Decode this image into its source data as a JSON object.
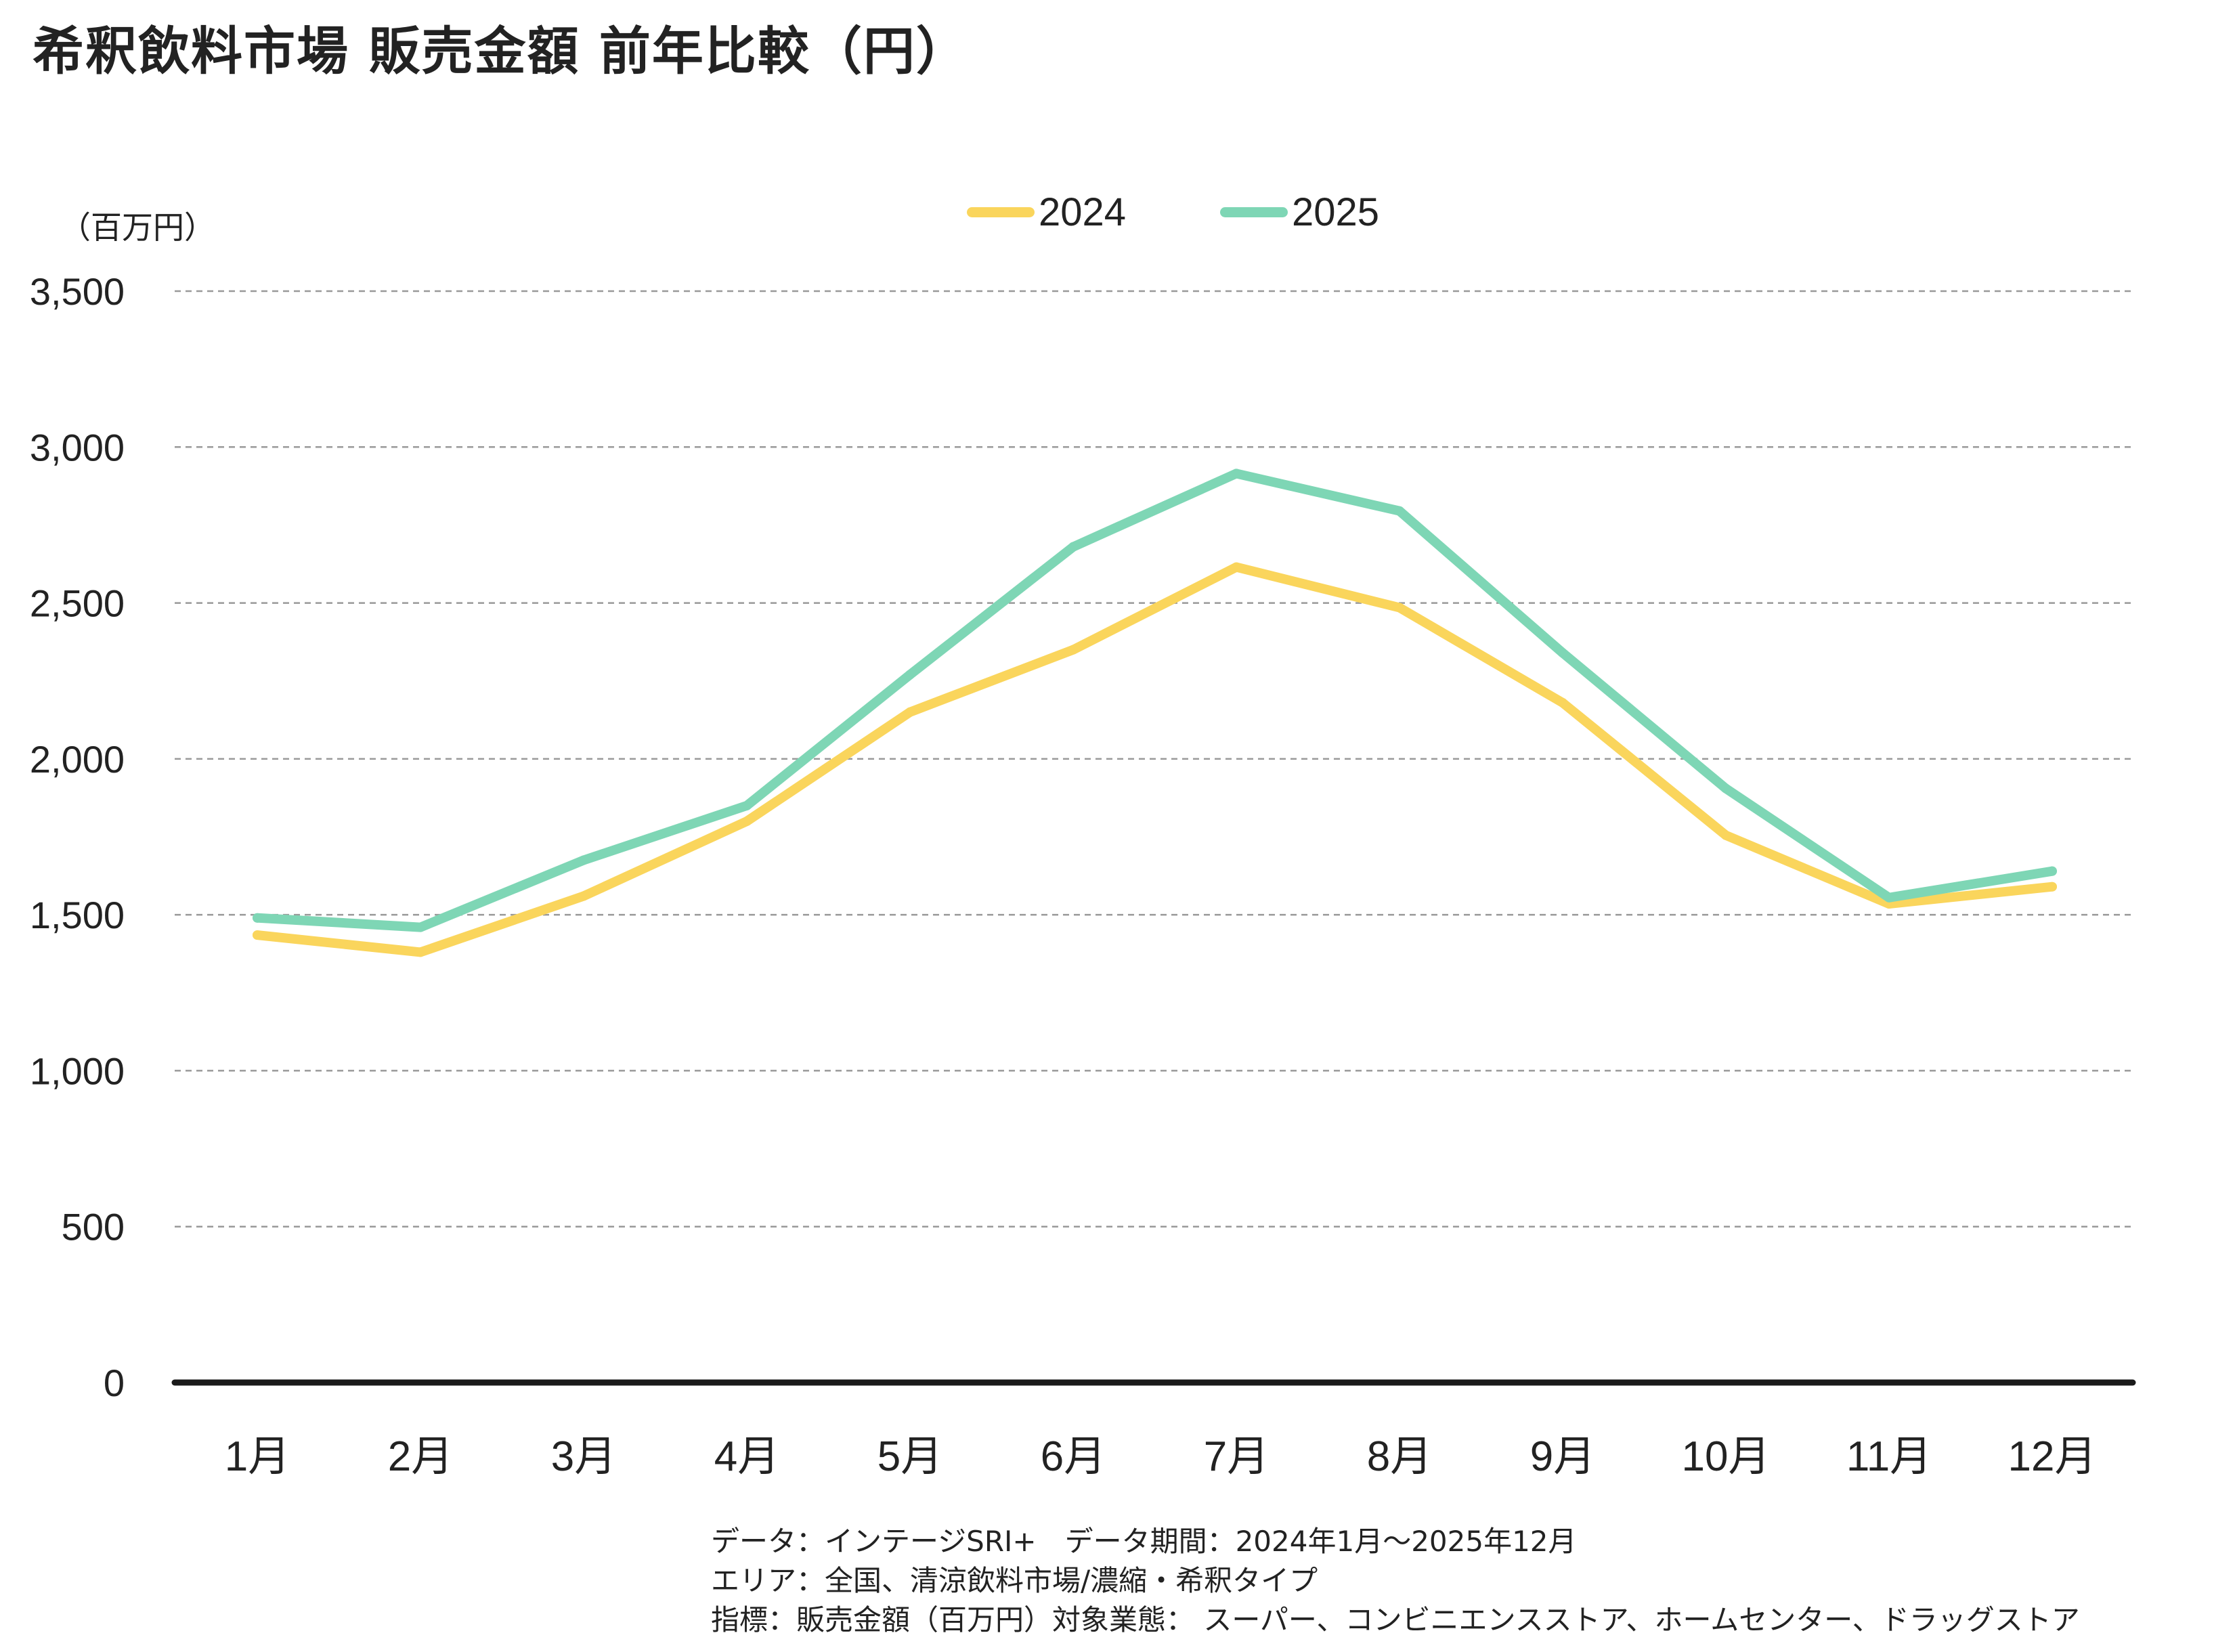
{
  "chart_data": {
    "type": "line",
    "title": "希釈飲料市場 販売金額 前年比較（円）",
    "ylabel": "（百万円）",
    "xlabel": "",
    "categories": [
      "1月",
      "2月",
      "3月",
      "4月",
      "5月",
      "6月",
      "7月",
      "8月",
      "9月",
      "10月",
      "11月",
      "12月"
    ],
    "ylim": [
      0,
      3500
    ],
    "yticks": [
      0,
      500,
      1000,
      1500,
      2000,
      2500,
      3000,
      3500
    ],
    "ytick_labels": [
      "0",
      "500",
      "1,000",
      "1,500",
      "2,000",
      "2,500",
      "3,000",
      "3,500"
    ],
    "grid": true,
    "legend_position": "top-center",
    "series": [
      {
        "name": "2024",
        "color": "#FAD55C",
        "values": [
          1435,
          1380,
          1560,
          1800,
          2150,
          2350,
          2615,
          2485,
          2180,
          1755,
          1535,
          1590
        ]
      },
      {
        "name": "2025",
        "color": "#7ED6B5",
        "values": [
          1490,
          1460,
          1675,
          1850,
          2270,
          2680,
          2915,
          2795,
          2340,
          1905,
          1555,
          1640
        ]
      }
    ]
  },
  "footnote": {
    "lines": [
      "データ：インテージSRI+　データ期間：2024年1月～2025年12月",
      "エリア：全国、清涼飲料市場/濃縮・希釈タイプ",
      "指標：販売金額（百万円）対象業態： スーパー、コンビニエンスストア、ホームセンター、ドラッグストア"
    ]
  },
  "colors": {
    "grid": "#999999",
    "axis": "#1a1a1a",
    "text": "#222222"
  }
}
